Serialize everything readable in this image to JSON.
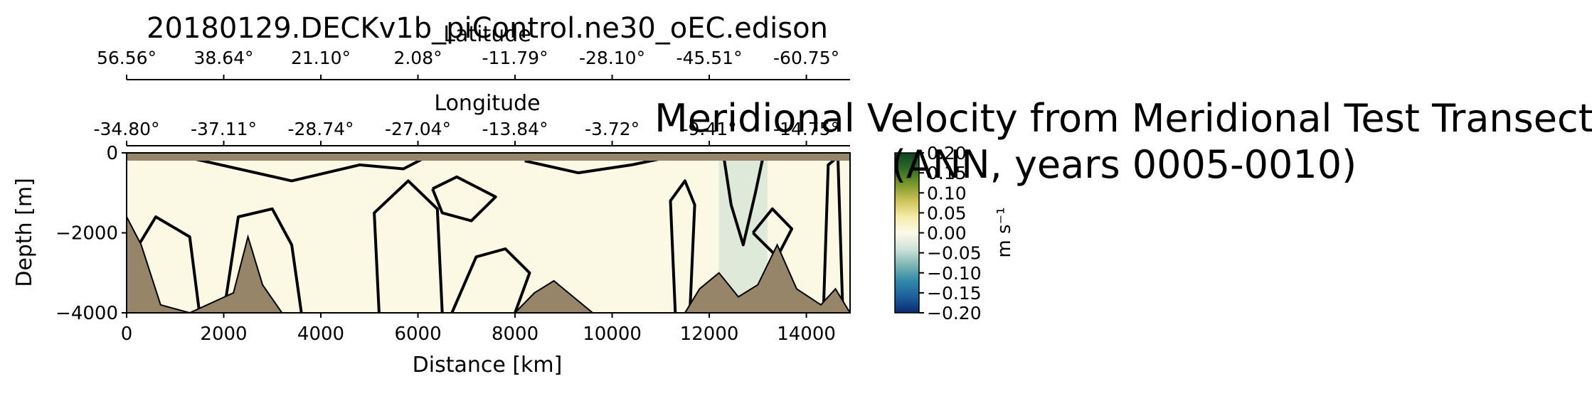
{
  "chart_data": {
    "type": "heatmap",
    "suptitle": "20180129.DECKv1b_piControl.ne30_oEC.edison",
    "title_line1": "Meridional Velocity from Meridional Test Transect",
    "title_line2": "(ANN, years 0005-0010)",
    "xlabel": "Distance [km]",
    "ylabel": "Depth [m]",
    "xlim": [
      0,
      14900
    ],
    "ylim": [
      -4000,
      0
    ],
    "x_ticks": [
      0,
      2000,
      4000,
      6000,
      8000,
      10000,
      12000,
      14000
    ],
    "x_tick_labels": [
      "0",
      "2000",
      "4000",
      "6000",
      "8000",
      "10000",
      "12000",
      "14000"
    ],
    "y_ticks": [
      0,
      -2000,
      -4000
    ],
    "y_tick_labels": [
      "0",
      "−2000",
      "−4000"
    ],
    "longitude_label": "Longitude",
    "longitude_tick_labels": [
      "-34.80°",
      "-37.11°",
      "-28.74°",
      "-27.04°",
      "-13.84°",
      "-3.72°",
      "-9.41°",
      "-14.75°"
    ],
    "latitude_label": "Latitude",
    "latitude_tick_labels": [
      "56.56°",
      "38.64°",
      "21.10°",
      "2.08°",
      "-11.79°",
      "-28.10°",
      "-45.51°",
      "-60.75°"
    ],
    "colorbar": {
      "label": "m s⁻¹",
      "range": [
        -0.2,
        0.2
      ],
      "ticks": [
        0.2,
        0.15,
        0.1,
        0.05,
        0.0,
        -0.05,
        -0.1,
        -0.15,
        -0.2
      ],
      "tick_labels": [
        "0.20",
        "0.15",
        "0.10",
        "0.05",
        "0.00",
        "−0.05",
        "−0.10",
        "−0.15",
        "−0.20"
      ],
      "colormap": [
        "#0a2a6e",
        "#1d5f9b",
        "#2f8aa8",
        "#7fb6b3",
        "#cfe3d9",
        "#fbf9ea",
        "#f4eca9",
        "#cfc35a",
        "#7d9a2c",
        "#2f6b28",
        "#0b4321"
      ]
    },
    "velocity_regions": [
      {
        "x0": 0,
        "x1": 1500,
        "value": 0.01
      },
      {
        "x0": 1500,
        "x1": 3200,
        "value": 0.0
      },
      {
        "x0": 3200,
        "x1": 6000,
        "value": 0.01
      },
      {
        "x0": 6000,
        "x1": 8200,
        "value": -0.005
      },
      {
        "x0": 8200,
        "x1": 11000,
        "value": 0.015
      },
      {
        "x0": 11000,
        "x1": 12200,
        "value": 0.0
      },
      {
        "x0": 12200,
        "x1": 13200,
        "value": -0.03
      },
      {
        "x0": 13200,
        "x1": 14900,
        "value": 0.015
      }
    ],
    "bathymetry_depth_points": [
      {
        "x": 0,
        "depth": 1600
      },
      {
        "x": 300,
        "depth": 2300
      },
      {
        "x": 700,
        "depth": 3800
      },
      {
        "x": 1300,
        "depth": 4000
      },
      {
        "x": 2200,
        "depth": 3500
      },
      {
        "x": 2500,
        "depth": 2100
      },
      {
        "x": 2800,
        "depth": 3300
      },
      {
        "x": 3200,
        "depth": 4000
      },
      {
        "x": 8000,
        "depth": 4000
      },
      {
        "x": 8400,
        "depth": 3500
      },
      {
        "x": 8800,
        "depth": 3200
      },
      {
        "x": 9200,
        "depth": 3600
      },
      {
        "x": 9600,
        "depth": 4000
      },
      {
        "x": 11500,
        "depth": 4000
      },
      {
        "x": 11800,
        "depth": 3400
      },
      {
        "x": 12200,
        "depth": 3000
      },
      {
        "x": 12600,
        "depth": 3600
      },
      {
        "x": 13000,
        "depth": 3300
      },
      {
        "x": 13400,
        "depth": 2300
      },
      {
        "x": 13800,
        "depth": 3400
      },
      {
        "x": 14300,
        "depth": 3800
      },
      {
        "x": 14600,
        "depth": 3400
      },
      {
        "x": 14900,
        "depth": 4000
      }
    ],
    "zero_contours": [
      [
        [
          150,
          -4000
        ],
        [
          200,
          -2400
        ],
        [
          600,
          -1600
        ],
        [
          1300,
          -2100
        ],
        [
          1500,
          -4000
        ]
      ],
      [
        [
          2000,
          -4000
        ],
        [
          2300,
          -1600
        ],
        [
          3000,
          -1400
        ],
        [
          3400,
          -2300
        ],
        [
          3600,
          -4000
        ]
      ],
      [
        [
          1200,
          -100
        ],
        [
          3400,
          -700
        ],
        [
          4800,
          -300
        ],
        [
          5700,
          -400
        ],
        [
          6100,
          -150
        ]
      ],
      [
        [
          5200,
          -4000
        ],
        [
          5100,
          -1500
        ],
        [
          5800,
          -700
        ],
        [
          6400,
          -1400
        ],
        [
          6500,
          -4000
        ]
      ],
      [
        [
          6300,
          -900
        ],
        [
          6800,
          -600
        ],
        [
          7600,
          -1100
        ],
        [
          7100,
          -1700
        ],
        [
          6500,
          -1500
        ],
        [
          6300,
          -900
        ]
      ],
      [
        [
          6700,
          -4000
        ],
        [
          7200,
          -2600
        ],
        [
          7800,
          -2400
        ],
        [
          8300,
          -3000
        ],
        [
          8000,
          -4000
        ]
      ],
      [
        [
          8200,
          -200
        ],
        [
          9300,
          -500
        ],
        [
          10400,
          -300
        ],
        [
          11000,
          -150
        ]
      ],
      [
        [
          11300,
          -4000
        ],
        [
          11200,
          -1200
        ],
        [
          11500,
          -700
        ],
        [
          11700,
          -1300
        ],
        [
          11600,
          -4000
        ]
      ],
      [
        [
          12300,
          -100
        ],
        [
          12450,
          -1300
        ],
        [
          12700,
          -2300
        ],
        [
          12950,
          -1000
        ],
        [
          13100,
          -150
        ]
      ],
      [
        [
          12900,
          -2000
        ],
        [
          13300,
          -1400
        ],
        [
          13700,
          -1900
        ],
        [
          13400,
          -2600
        ],
        [
          12900,
          -2000
        ]
      ],
      [
        [
          14350,
          -4000
        ],
        [
          14450,
          -300
        ],
        [
          14650,
          -100
        ],
        [
          14750,
          -4000
        ]
      ]
    ]
  }
}
